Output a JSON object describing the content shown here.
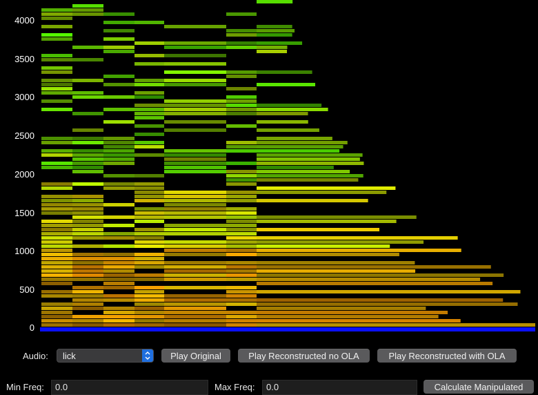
{
  "spectrogram": {
    "y_ticks": [
      "4000",
      "3500",
      "3000",
      "2500",
      "2000",
      "1500",
      "1000",
      "500",
      "0"
    ],
    "baseline_color": "#0a10ff",
    "background": "#000000"
  },
  "controls": {
    "audio_label": "Audio:",
    "audio_selected": "lick",
    "play_original": "Play Original",
    "play_no_ola": "Play Reconstructed no OLA",
    "play_with_ola": "Play Reconstructed with OLA",
    "min_freq_label": "Min Freq:",
    "min_freq_value": "0.0",
    "max_freq_label": "Max Freq:",
    "max_freq_value": "0.0",
    "calculate": "Calculate Manipulated"
  },
  "icons": {
    "combo_chevron": "chevron-updown-icon"
  }
}
